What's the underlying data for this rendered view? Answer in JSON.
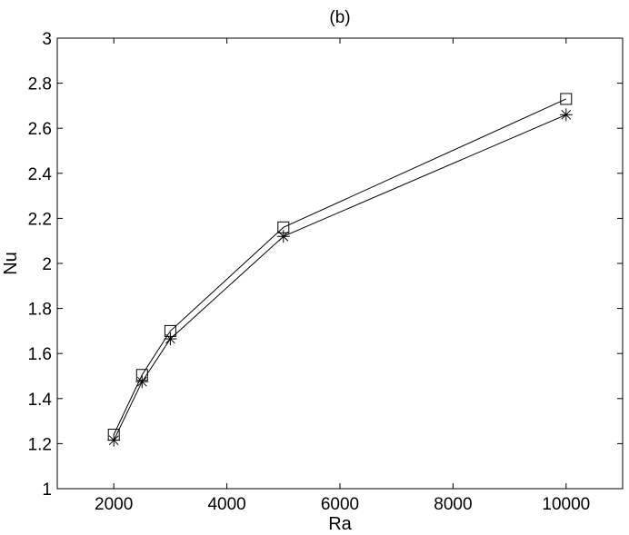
{
  "chart_data": {
    "type": "line",
    "title": "(b)",
    "xlabel": "Ra",
    "ylabel": "Nu",
    "xlim": [
      1000,
      11000
    ],
    "ylim": [
      1,
      3
    ],
    "xticks": [
      2000,
      4000,
      6000,
      8000,
      10000
    ],
    "yticks": [
      1,
      1.2,
      1.4,
      1.6,
      1.8,
      2,
      2.2,
      2.4,
      2.6,
      2.8,
      3
    ],
    "x": [
      2000,
      2500,
      3000,
      5000,
      10000
    ],
    "grid": false,
    "series": [
      {
        "marker": "square",
        "color": "#000000",
        "values": [
          1.24,
          1.505,
          1.7,
          2.16,
          2.73
        ]
      },
      {
        "marker": "asterisk",
        "color": "#000000",
        "values": [
          1.215,
          1.475,
          1.665,
          2.12,
          2.66
        ]
      }
    ]
  }
}
